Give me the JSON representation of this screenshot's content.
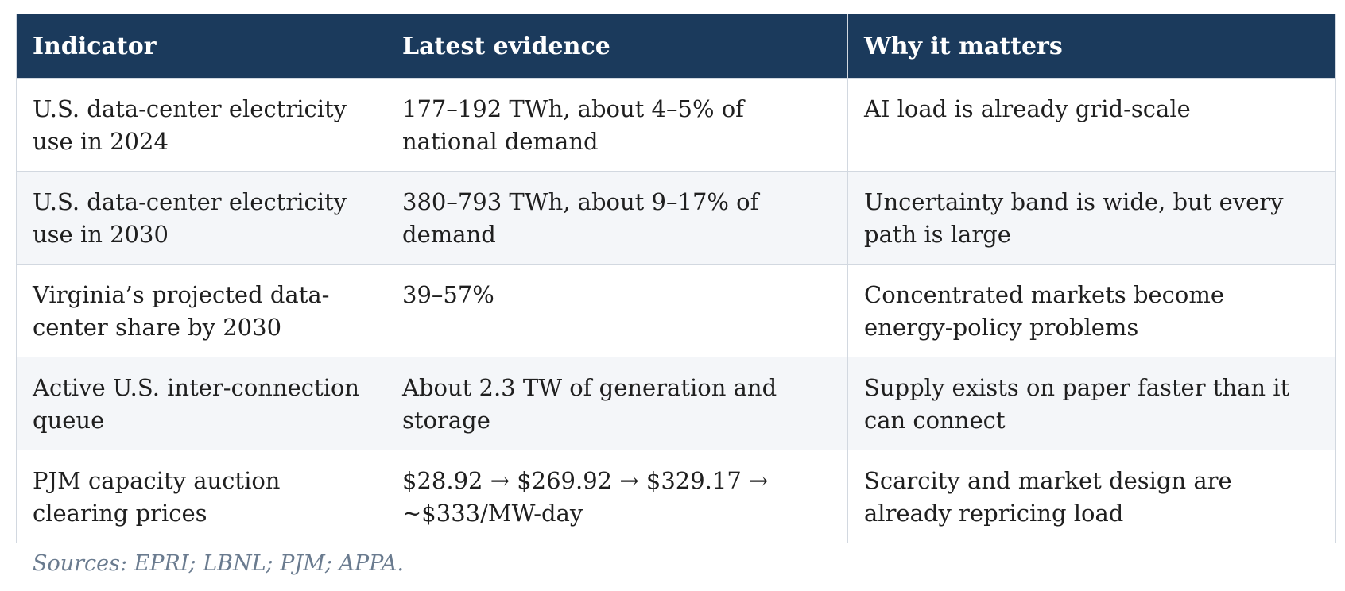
{
  "table": {
    "headers": [
      "Indicator",
      "Latest evidence",
      "Why it matters"
    ],
    "rows": [
      {
        "indicator": "U.S. data-center electricity use in 2024",
        "evidence": "177–192 TWh, about 4–5% of national demand",
        "why": "AI load is already grid-scale"
      },
      {
        "indicator": "U.S. data-center electricity use in 2030",
        "evidence": "380–793 TWh, about 9–17% of demand",
        "why": "Uncertainty band is wide, but every path is large"
      },
      {
        "indicator": "Virginia’s projected data-center share by 2030",
        "evidence": "39–57%",
        "why": "Concentrated markets become energy-policy problems"
      },
      {
        "indicator": "Active U.S. inter-connection queue",
        "evidence": "About 2.3 TW of generation and storage",
        "why": "Supply exists on paper faster than it can connect"
      },
      {
        "indicator": "PJM capacity auction clearing prices",
        "evidence": "$28.92 → $269.92 → $329.17 → ~$333/MW-day",
        "why": "Scarcity and market design are already repricing load"
      }
    ]
  },
  "source_note": "Sources: EPRI; LBNL; PJM; APPA.",
  "colors": {
    "header_bg": "#1b3a5c",
    "header_text": "#ffffff",
    "row_alt_bg": "#f4f6f9",
    "border": "#d2d8e0",
    "source_text": "#6a7b8f"
  }
}
